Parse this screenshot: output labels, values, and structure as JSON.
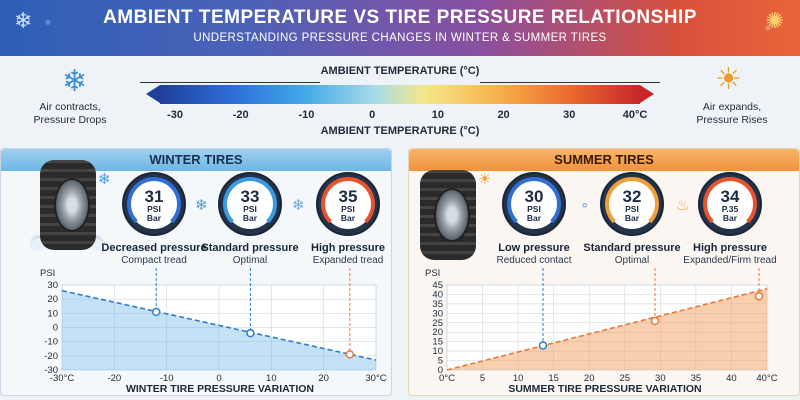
{
  "header": {
    "title": "AMBIENT TEMPERATURE VS TIRE PRESSURE RELATIONSHIP",
    "subtitle": "UNDERSTANDING PRESSURE CHANGES IN WINTER & SUMMER TIRES"
  },
  "scale": {
    "label_top": "AMBIENT TEMPERATURE (°C)",
    "label_bottom": "AMBIENT TEMPERATURE (°C)",
    "ticks": [
      "-30",
      "-20",
      "-10",
      "0",
      "10",
      "20",
      "30",
      "40°C"
    ],
    "left_note": "Air contracts,\nPressure Drops",
    "right_note": "Air expands,\nPressure Rises"
  },
  "winter": {
    "title": "WINTER TIRES",
    "gauges": [
      {
        "value": "31",
        "unit1": "PSI",
        "unit2": "Bar",
        "caption": "Decreased pressure",
        "sub": "Compact tread",
        "arc": "#2f6fd6"
      },
      {
        "value": "33",
        "unit1": "PSI",
        "unit2": "Bar",
        "caption": "Standard pressure",
        "sub": "Optimal",
        "arc": "#3a9be0"
      },
      {
        "value": "35",
        "unit1": "PSI",
        "unit2": "Bar",
        "caption": "High pressure",
        "sub": "Expanded tread",
        "arc": "#e8532f"
      }
    ],
    "chart_title": "WINTER TIRE PRESSURE VARIATION",
    "y_label": "PSI"
  },
  "summer": {
    "title": "SUMMER TIRES",
    "gauges": [
      {
        "value": "30",
        "unit1": "PSI",
        "unit2": "Bar",
        "caption": "Low pressure",
        "sub": "Reduced contact",
        "arc": "#2f6fd6"
      },
      {
        "value": "32",
        "unit1": "PSI",
        "unit2": "Bar",
        "caption": "Standard pressure",
        "sub": "Optimal",
        "arc": "#f0a03a"
      },
      {
        "value": "34",
        "unit1": "P.35",
        "unit2": "Bar",
        "caption": "High pressure",
        "sub": "Expanded/Firm tread",
        "arc": "#e8532f"
      }
    ],
    "chart_title": "SUMMER TIRE PRESSURE VARIATION",
    "y_label": "PSI"
  },
  "chart_data": [
    {
      "type": "line",
      "title": "WINTER TIRE PRESSURE VARIATION",
      "ylabel": "PSI",
      "xlim": [
        -30,
        30
      ],
      "ylim": [
        -30,
        30
      ],
      "xticks": [
        "-30°C",
        "-20",
        "-10",
        "0",
        "10",
        "20",
        "30°C"
      ],
      "yticks": [
        "30",
        "20",
        "10",
        "0",
        "-10",
        "-20",
        "-30"
      ],
      "line": {
        "x": [
          -30,
          30
        ],
        "y": [
          26,
          -23
        ]
      },
      "markers": [
        {
          "x": -12,
          "y": 11
        },
        {
          "x": 6,
          "y": -4
        },
        {
          "x": 25,
          "y": -19
        }
      ],
      "color": "#2e7cd0",
      "grid": true
    },
    {
      "type": "line",
      "title": "SUMMER TIRE PRESSURE VARIATION",
      "ylabel": "PSI",
      "xlim": [
        0,
        40
      ],
      "ylim": [
        0,
        45
      ],
      "xticks": [
        "0°C",
        "5",
        "10",
        "15",
        "20",
        "25",
        "30",
        "35",
        "40",
        "40°C"
      ],
      "yticks": [
        "45",
        "40",
        "35",
        "30",
        "25",
        "20",
        "15",
        "10",
        "5",
        "0"
      ],
      "line": {
        "x": [
          0,
          40
        ],
        "y": [
          0,
          43
        ]
      },
      "markers": [
        {
          "x": 12,
          "y": 13
        },
        {
          "x": 26,
          "y": 26
        },
        {
          "x": 39,
          "y": 39
        }
      ],
      "color": "#e8783a",
      "grid": true
    }
  ]
}
